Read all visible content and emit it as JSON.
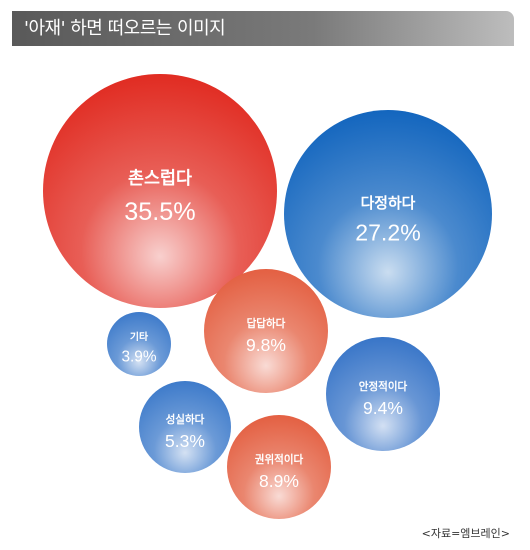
{
  "header": {
    "title": "'아재' 하면 떠오르는 이미지"
  },
  "source": "<자료=엠브레인>",
  "chart_data": {
    "type": "bubble",
    "title": "'아재' 하면 떠오르는 이미지",
    "series": [
      {
        "name": "촌스럽다",
        "value": 35.5,
        "label": "35.5%",
        "color": "#e0281e"
      },
      {
        "name": "다정하다",
        "value": 27.2,
        "label": "27.2%",
        "color": "#0f63bd"
      },
      {
        "name": "답답하다",
        "value": 9.8,
        "label": "9.8%",
        "color": "#e35d3f"
      },
      {
        "name": "안정적이다",
        "value": 9.4,
        "label": "9.4%",
        "color": "#3573c7"
      },
      {
        "name": "권위적이다",
        "value": 8.9,
        "label": "8.9%",
        "color": "#e35d3f"
      },
      {
        "name": "성실하다",
        "value": 5.3,
        "label": "5.3%",
        "color": "#3a78c9"
      },
      {
        "name": "기타",
        "value": 3.9,
        "label": "3.9%",
        "color": "#3a78c9"
      }
    ]
  }
}
